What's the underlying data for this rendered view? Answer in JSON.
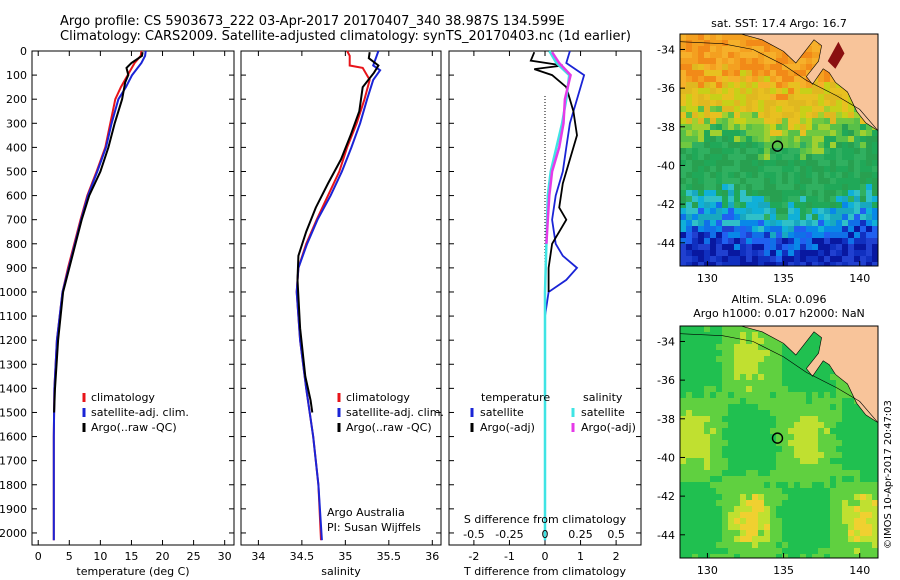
{
  "header": {
    "line1": "Argo profile: CS 5903673_222 03-Apr-2017 20170407_340 38.987S 134.599E",
    "line2": "Climatology: CARS2009. Satellite-adjusted climatology: synTS_20170403.nc (1d earlier)"
  },
  "side_stamp": "©IMOS 10-Apr-2017 20:47:03",
  "colors": {
    "climatology": "#e8141a",
    "satellite": "#1a24d6",
    "argo": "#000000",
    "sat_s": "#3fe4e4",
    "argo_s": "#e63ae8",
    "land": "#f8c49a"
  },
  "chart_data": [
    {
      "type": "line",
      "xlabel": "temperature (deg C)",
      "ylabel": "",
      "xlim": [
        -1,
        31.5
      ],
      "ylim": [
        0,
        2050
      ],
      "y_reversed": true,
      "xticks": [
        0,
        5,
        10,
        15,
        20,
        25,
        30
      ],
      "yticks": [
        0,
        100,
        200,
        300,
        400,
        500,
        600,
        700,
        800,
        900,
        1000,
        1100,
        1200,
        1300,
        1400,
        1500,
        1600,
        1700,
        1800,
        1900,
        2000
      ],
      "legend": [
        "climatology",
        "satellite-adj. clim.",
        "Argo(..raw -QC)"
      ],
      "series": [
        {
          "name": "climatology",
          "color": "climatology",
          "x": [
            16.6,
            16.5,
            15.5,
            14.4,
            13.3,
            12.4,
            11.6,
            10.8,
            9.4,
            7.9,
            6.8,
            5.8,
            4.8,
            3.9,
            3.0,
            2.6,
            2.5,
            2.5,
            2.5
          ],
          "y": [
            0,
            20,
            50,
            100,
            150,
            200,
            300,
            400,
            500,
            600,
            700,
            800,
            900,
            1000,
            1200,
            1400,
            1600,
            1800,
            2030
          ]
        },
        {
          "name": "satellite-adj. clim.",
          "color": "satellite",
          "x": [
            17.3,
            17.2,
            16.6,
            15.1,
            14.1,
            12.9,
            11.8,
            10.9,
            9.5,
            8.0,
            6.9,
            5.9,
            4.9,
            3.9,
            3.0,
            2.6,
            2.5,
            2.5,
            2.5
          ],
          "y": [
            0,
            20,
            50,
            100,
            150,
            200,
            300,
            400,
            500,
            600,
            700,
            800,
            900,
            1000,
            1200,
            1400,
            1600,
            1800,
            2030
          ]
        },
        {
          "name": "Argo(..raw -QC)",
          "color": "argo",
          "x": [
            16.8,
            16.7,
            15.0,
            14.2,
            14.5,
            14.0,
            13.5,
            12.3,
            11.3,
            10.0,
            8.2,
            7.0,
            6.0,
            5.0,
            4.0,
            3.2,
            2.7,
            2.55
          ],
          "y": [
            5,
            20,
            50,
            70,
            100,
            130,
            200,
            300,
            400,
            500,
            600,
            700,
            800,
            900,
            1000,
            1200,
            1400,
            1500
          ]
        }
      ]
    },
    {
      "type": "line",
      "xlabel": "salinity",
      "xlim": [
        33.8,
        36.1
      ],
      "ylim": [
        0,
        2050
      ],
      "y_reversed": true,
      "xticks": [
        34,
        34.5,
        35,
        35.5,
        36
      ],
      "legend": [
        "climatology",
        "satellite-adj. clim.",
        "Argo(..raw -QC)"
      ],
      "annotation": [
        "Argo Australia",
        "PI: Susan Wijffels"
      ],
      "series": [
        {
          "name": "climatology",
          "color": "climatology",
          "x": [
            35.02,
            35.05,
            35.05,
            35.2,
            35.28,
            35.22,
            35.13,
            35.02,
            34.93,
            34.8,
            34.67,
            34.55,
            34.46,
            34.44,
            34.48,
            34.55,
            34.63,
            34.69,
            34.72
          ],
          "y": [
            0,
            20,
            60,
            70,
            120,
            200,
            300,
            400,
            500,
            600,
            700,
            800,
            900,
            1000,
            1200,
            1400,
            1600,
            1800,
            2030
          ]
        },
        {
          "name": "satellite-adj. clim.",
          "color": "satellite",
          "x": [
            35.38,
            35.36,
            35.32,
            35.4,
            35.32,
            35.25,
            35.17,
            35.07,
            34.96,
            34.83,
            34.68,
            34.56,
            34.46,
            34.44,
            34.48,
            34.55,
            34.63,
            34.69,
            34.73
          ],
          "y": [
            0,
            20,
            60,
            80,
            120,
            200,
            300,
            400,
            500,
            600,
            700,
            800,
            900,
            1000,
            1200,
            1400,
            1600,
            1800,
            2030
          ]
        },
        {
          "name": "Argo(..raw -QC)",
          "color": "argo",
          "x": [
            35.28,
            35.27,
            35.38,
            35.33,
            35.2,
            35.16,
            35.06,
            34.95,
            34.8,
            34.66,
            34.55,
            34.46,
            34.45,
            34.48,
            34.54,
            34.6,
            34.62
          ],
          "y": [
            5,
            30,
            60,
            90,
            150,
            250,
            350,
            450,
            550,
            650,
            750,
            850,
            950,
            1150,
            1350,
            1450,
            1500
          ]
        }
      ]
    },
    {
      "type": "line",
      "xlabel": "T difference from climatology",
      "xlim": [
        -2.7,
        2.7
      ],
      "ylim": [
        0,
        2050
      ],
      "y_reversed": true,
      "xticks": [
        -2,
        -1,
        0,
        1,
        2
      ],
      "x2label": "S difference from climatology",
      "x2lim": [
        -0.675,
        0.675
      ],
      "x2ticks": [
        -0.5,
        -0.25,
        0,
        0.25,
        0.5
      ],
      "legend": {
        "temperature": [
          "satellite",
          "Argo(-adj)"
        ],
        "salinity": [
          "satellite",
          "Argo(-adj)"
        ]
      },
      "series": [
        {
          "name": "satellite",
          "group": "temperature",
          "color": "satellite",
          "x": [
            0.7,
            0.6,
            1.1,
            0.9,
            0.7,
            0.6,
            0.5,
            0.3,
            0.2,
            0.3,
            0.5,
            0.9,
            0.6,
            0.1,
            0,
            0,
            0,
            0
          ],
          "y": [
            0,
            50,
            100,
            200,
            300,
            400,
            500,
            600,
            700,
            800,
            850,
            900,
            950,
            1000,
            1100,
            1300,
            1600,
            2030
          ]
        },
        {
          "name": "Argo(-adj)",
          "group": "temperature",
          "color": "argo",
          "x": [
            -0.3,
            -0.4,
            0.5,
            -0.3,
            0.2,
            0.6,
            0.8,
            0.9,
            0.7,
            0.5,
            0.4,
            0.6,
            0.2,
            0.1,
            0.1
          ],
          "y": [
            5,
            40,
            60,
            75,
            100,
            150,
            250,
            350,
            450,
            550,
            650,
            700,
            800,
            900,
            1000
          ]
        },
        {
          "name": "satellite",
          "group": "salinity",
          "color": "sat_s",
          "x": [
            0.03,
            0.08,
            0.17,
            0.15,
            0.12,
            0.08,
            0.04,
            0.02,
            0.01,
            0,
            0,
            0,
            0
          ],
          "y": [
            0,
            50,
            100,
            200,
            300,
            400,
            500,
            600,
            800,
            1000,
            1300,
            1600,
            2030
          ]
        },
        {
          "name": "Argo(-adj)",
          "group": "salinity",
          "color": "argo_s",
          "x": [
            0.05,
            0.1,
            0.18,
            0.14,
            0.13,
            0.1,
            0.05,
            0.03,
            0.02,
            0.01
          ],
          "y": [
            5,
            50,
            100,
            200,
            300,
            400,
            500,
            600,
            700,
            800
          ]
        }
      ]
    },
    {
      "type": "heatmap",
      "title": "sat. SST: 17.4 Argo: 16.7",
      "xlim": [
        128.2,
        141.2
      ],
      "ylim": [
        -45.2,
        -33.2
      ],
      "xticks": [
        130,
        135,
        140
      ],
      "yticks": [
        -34,
        -36,
        -38,
        -40,
        -42,
        -44
      ],
      "marker": [
        134.6,
        -39.0
      ]
    },
    {
      "type": "heatmap",
      "title": "Altim. SLA: 0.096",
      "subtitle": "Argo h1000: 0.017 h2000: NaN",
      "xlim": [
        128.2,
        141.2
      ],
      "ylim": [
        -45.2,
        -33.2
      ],
      "xticks": [
        130,
        135,
        140
      ],
      "yticks": [
        -34,
        -36,
        -38,
        -40,
        -42,
        -44
      ],
      "marker": [
        134.6,
        -39.0
      ]
    }
  ]
}
